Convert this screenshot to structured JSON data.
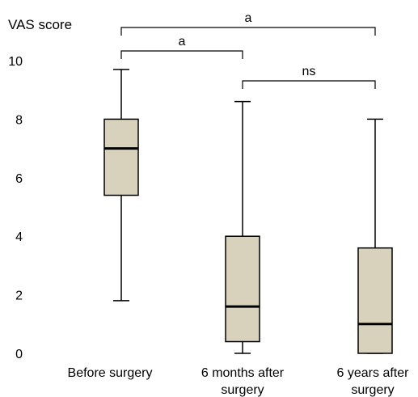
{
  "chart_data": {
    "type": "boxplot",
    "ylabel": "VAS score",
    "ylim": [
      0,
      10
    ],
    "yticks": [
      "0",
      "2",
      "4",
      "6",
      "8",
      "10"
    ],
    "categories": [
      [
        "Before surgery"
      ],
      [
        "6 months after",
        "surgery"
      ],
      [
        "6 years after",
        "surgery"
      ]
    ],
    "boxes": [
      {
        "min": 1.8,
        "q1": 5.4,
        "median": 7.0,
        "q3": 8.0,
        "max": 9.7
      },
      {
        "min": 0.0,
        "q1": 0.4,
        "median": 1.6,
        "q3": 4.0,
        "max": 8.6
      },
      {
        "min": 0.0,
        "q1": 0.0,
        "median": 1.0,
        "q3": 3.6,
        "max": 8.0
      }
    ],
    "significance": [
      {
        "from": 0,
        "to": 2,
        "label": "a"
      },
      {
        "from": 0,
        "to": 1,
        "label": "a"
      },
      {
        "from": 1,
        "to": 2,
        "label": "ns"
      }
    ],
    "box_fill": "#d8d2bc",
    "grid": false,
    "legend": "none"
  }
}
